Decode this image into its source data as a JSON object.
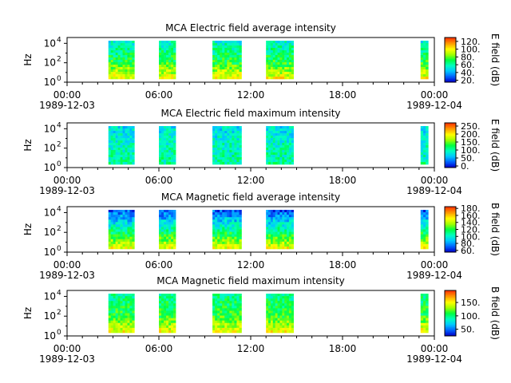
{
  "colors": {
    "colormap": [
      "#0000c8",
      "#0064ff",
      "#00c8ff",
      "#00ffc0",
      "#00ff40",
      "#a0ff00",
      "#ffff00",
      "#ffa000",
      "#ff3c00"
    ]
  },
  "chart_data": [
    {
      "type": "heatmap",
      "title": "MCA  Electric field average intensity",
      "ylabel": "Hz",
      "y_scale": "log",
      "y_ticks": [
        {
          "base": "10",
          "exp": "0"
        },
        {
          "base": "10",
          "exp": "2"
        },
        {
          "base": "10",
          "exp": "4"
        }
      ],
      "x_ticks": [
        "00:00",
        "06:00",
        "12:00",
        "18:00",
        "00:00"
      ],
      "x_dates": [
        "1989-12-03",
        "1989-12-04"
      ],
      "colorbar": {
        "label": "E field (dB)",
        "ticks": [
          "20.",
          "40.",
          "60.",
          "80.",
          "100.",
          "120."
        ],
        "range": [
          15,
          130
        ]
      },
      "data_blocks_hours": [
        [
          2.7,
          4.4
        ],
        [
          6.0,
          7.1
        ],
        [
          9.5,
          11.4
        ],
        [
          13.0,
          14.8
        ],
        [
          23.1,
          23.6
        ]
      ],
      "typical_levels": {
        "low_freq": 100,
        "mid_freq": 75,
        "high_freq": 55
      }
    },
    {
      "type": "heatmap",
      "title": "MCA  Electric field maximum intensity",
      "ylabel": "Hz",
      "y_scale": "log",
      "y_ticks": [
        {
          "base": "10",
          "exp": "0"
        },
        {
          "base": "10",
          "exp": "2"
        },
        {
          "base": "10",
          "exp": "4"
        }
      ],
      "x_ticks": [
        "00:00",
        "06:00",
        "12:00",
        "18:00",
        "00:00"
      ],
      "x_dates": [
        "1989-12-03",
        "1989-12-04"
      ],
      "colorbar": {
        "label": "E field (dB)",
        "ticks": [
          "0.",
          "50.",
          "100.",
          "150.",
          "200.",
          "250."
        ],
        "range": [
          -10,
          270
        ]
      },
      "data_blocks_hours": [
        [
          2.7,
          4.4
        ],
        [
          6.0,
          7.1
        ],
        [
          9.5,
          11.4
        ],
        [
          13.0,
          14.8
        ],
        [
          23.1,
          23.6
        ]
      ],
      "typical_levels": {
        "low_freq": 105,
        "mid_freq": 95,
        "high_freq": 75
      }
    },
    {
      "type": "heatmap",
      "title": "MCA  Magnetic field average intensity",
      "ylabel": "Hz",
      "y_scale": "log",
      "y_ticks": [
        {
          "base": "10",
          "exp": "0"
        },
        {
          "base": "10",
          "exp": "2"
        },
        {
          "base": "10",
          "exp": "4"
        }
      ],
      "x_ticks": [
        "00:00",
        "06:00",
        "12:00",
        "18:00",
        "00:00"
      ],
      "x_dates": [
        "1989-12-03",
        "1989-12-04"
      ],
      "colorbar": {
        "label": "B field (dB)",
        "ticks": [
          "60.",
          "80.",
          "100.",
          "120.",
          "140.",
          "160.",
          "180."
        ],
        "range": [
          55,
          185
        ]
      },
      "data_blocks_hours": [
        [
          2.7,
          4.4
        ],
        [
          6.0,
          7.1
        ],
        [
          9.5,
          11.4
        ],
        [
          13.0,
          14.8
        ],
        [
          23.1,
          23.6
        ]
      ],
      "typical_levels": {
        "low_freq": 150,
        "mid_freq": 115,
        "high_freq": 70
      }
    },
    {
      "type": "heatmap",
      "title": "MCA  Magnetic field maximum intensity",
      "ylabel": "Hz",
      "y_scale": "log",
      "y_ticks": [
        {
          "base": "10",
          "exp": "0"
        },
        {
          "base": "10",
          "exp": "2"
        },
        {
          "base": "10",
          "exp": "4"
        }
      ],
      "x_ticks": [
        "00:00",
        "06:00",
        "12:00",
        "18:00",
        "00:00"
      ],
      "x_dates": [
        "1989-12-03",
        "1989-12-04"
      ],
      "colorbar": {
        "label": "B field (dB)",
        "ticks": [
          "50.",
          "100.",
          "150."
        ],
        "range": [
          25,
          195
        ]
      },
      "data_blocks_hours": [
        [
          2.7,
          4.4
        ],
        [
          6.0,
          7.1
        ],
        [
          9.5,
          11.4
        ],
        [
          13.0,
          14.8
        ],
        [
          23.1,
          23.6
        ]
      ],
      "typical_levels": {
        "low_freq": 150,
        "mid_freq": 115,
        "high_freq": 95
      }
    }
  ]
}
